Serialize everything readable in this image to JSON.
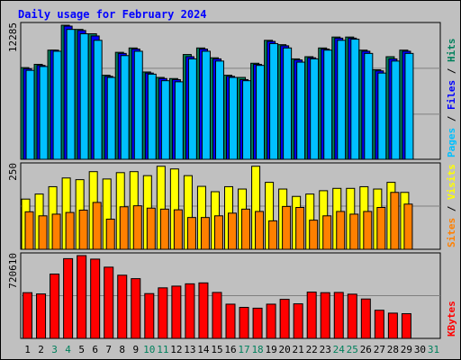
{
  "title": "Daily usage for February 2024",
  "colors": {
    "background": "#c0c0c0",
    "title": "#0000ff",
    "hits": "#00805c",
    "files": "#0000ff",
    "pages": "#00c0ff",
    "visits": "#ffff00",
    "sites": "#ff8000",
    "kbytes": "#ff0000",
    "weekend": "#00805c",
    "weekday": "#000000"
  },
  "chart_data": [
    {
      "type": "bar",
      "name": "hits-files-pages",
      "scale_label": "12285",
      "ymax": 12285,
      "legend": [
        {
          "text": "Pages",
          "color": "#00c0ff"
        },
        {
          "text": " / ",
          "color": "#000000"
        },
        {
          "text": "Files",
          "color": "#0000ff"
        },
        {
          "text": " / ",
          "color": "#000000"
        },
        {
          "text": "Hits",
          "color": "#00805c"
        }
      ],
      "categories": [
        "1",
        "2",
        "3",
        "4",
        "5",
        "6",
        "7",
        "8",
        "9",
        "10",
        "11",
        "12",
        "13",
        "14",
        "15",
        "16",
        "17",
        "18",
        "19",
        "20",
        "21",
        "22",
        "23",
        "24",
        "25",
        "26",
        "27",
        "28",
        "29",
        "30",
        "31"
      ],
      "series": [
        {
          "name": "Hits",
          "values": [
            8400,
            8700,
            10000,
            12285,
            11900,
            11500,
            7700,
            9800,
            10200,
            8000,
            7500,
            7400,
            9600,
            10200,
            9300,
            7700,
            7500,
            8800,
            10900,
            10500,
            9200,
            9400,
            10200,
            11200,
            11200,
            10000,
            8200,
            9400,
            10000,
            0,
            0
          ]
        },
        {
          "name": "Files",
          "values": [
            8300,
            8600,
            10000,
            12200,
            11800,
            11300,
            7600,
            9700,
            10100,
            7900,
            7400,
            7300,
            9400,
            10100,
            9200,
            7600,
            7300,
            8700,
            10800,
            10400,
            9100,
            9300,
            10100,
            11100,
            11100,
            9900,
            8100,
            9200,
            9900,
            0,
            0
          ]
        },
        {
          "name": "Pages",
          "values": [
            8150,
            8500,
            9900,
            11900,
            11500,
            10900,
            7500,
            9500,
            9900,
            7800,
            7200,
            7100,
            9200,
            9900,
            9000,
            7500,
            7200,
            8600,
            10600,
            10200,
            8900,
            9200,
            10000,
            10900,
            11000,
            9700,
            7900,
            9000,
            9700,
            0,
            0
          ]
        }
      ]
    },
    {
      "type": "bar",
      "name": "visits-sites",
      "scale_label": "250",
      "ymax": 250,
      "legend": [
        {
          "text": "Sites",
          "color": "#ff8000"
        },
        {
          "text": " / ",
          "color": "#000000"
        },
        {
          "text": "Visits",
          "color": "#ffff00"
        }
      ],
      "categories": [
        "1",
        "2",
        "3",
        "4",
        "5",
        "6",
        "7",
        "8",
        "9",
        "10",
        "11",
        "12",
        "13",
        "14",
        "15",
        "16",
        "17",
        "18",
        "19",
        "20",
        "21",
        "22",
        "23",
        "24",
        "25",
        "26",
        "27",
        "28",
        "29",
        "30",
        "31"
      ],
      "series": [
        {
          "name": "Visits",
          "values": [
            150,
            165,
            187,
            213,
            208,
            232,
            210,
            229,
            232,
            220,
            248,
            240,
            220,
            188,
            172,
            187,
            180,
            248,
            200,
            180,
            158,
            165,
            175,
            182,
            182,
            187,
            180,
            200,
            170,
            0,
            0
          ]
        },
        {
          "name": "Sites",
          "values": [
            112,
            100,
            105,
            110,
            117,
            140,
            90,
            127,
            130,
            123,
            120,
            118,
            95,
            95,
            100,
            108,
            120,
            113,
            85,
            128,
            125,
            87,
            100,
            113,
            105,
            113,
            125,
            170,
            135,
            0,
            0
          ]
        }
      ]
    },
    {
      "type": "bar",
      "name": "kbytes",
      "scale_label": "720610",
      "ymax": 720610,
      "legend": [
        {
          "text": "KBytes",
          "color": "#ff0000"
        }
      ],
      "categories": [
        "1",
        "2",
        "3",
        "4",
        "5",
        "6",
        "7",
        "8",
        "9",
        "10",
        "11",
        "12",
        "13",
        "14",
        "15",
        "16",
        "17",
        "18",
        "19",
        "20",
        "21",
        "22",
        "23",
        "24",
        "25",
        "26",
        "27",
        "28",
        "29",
        "30",
        "31"
      ],
      "series": [
        {
          "name": "KBytes",
          "values": [
            398000,
            387000,
            560000,
            694000,
            720610,
            690000,
            620000,
            550000,
            520000,
            390000,
            440000,
            455000,
            475000,
            483000,
            400000,
            298000,
            270000,
            263000,
            298000,
            340000,
            301000,
            403000,
            398000,
            400000,
            385000,
            343000,
            245000,
            220000,
            215000,
            0,
            0
          ]
        }
      ]
    }
  ],
  "weekend_days": [
    3,
    4,
    10,
    11,
    17,
    18,
    24,
    25,
    31
  ]
}
